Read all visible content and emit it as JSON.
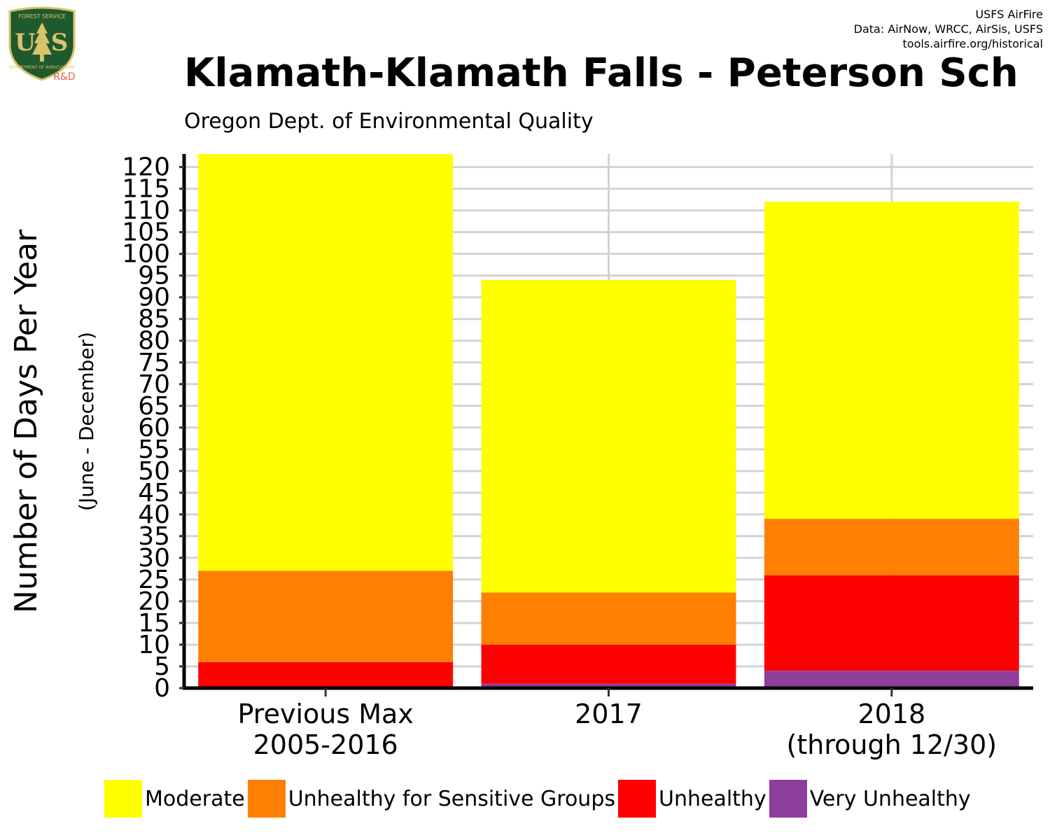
{
  "logo": {
    "top_text": "FOREST SERVICE",
    "initials": "USFS",
    "initial_left": "U",
    "initial_right": "S",
    "bottom_text": "DEPARTMENT OF AGRICULTURE",
    "tag": "R&D",
    "colors": {
      "shield": "#1e5a2e",
      "rim": "#d9c36a",
      "tree": "#d9c36a",
      "tag": "#e0614b"
    }
  },
  "credits": {
    "line1": "USFS AirFire",
    "line2": "Data: AirNow, WRCC, AirSis, USFS",
    "line3": "tools.airfire.org/historical"
  },
  "chart_data": {
    "type": "bar",
    "stacked": true,
    "title": "Klamath-Klamath Falls - Peterson Sch",
    "subtitle": "Oregon Dept. of Environmental Quality",
    "ylabel": "Number of Days Per Year",
    "ylabel_sub": "(June - December)",
    "xlabel": "",
    "ylim": [
      0,
      123
    ],
    "yticks": [
      0,
      5,
      10,
      15,
      20,
      25,
      30,
      35,
      40,
      45,
      50,
      55,
      60,
      65,
      70,
      75,
      80,
      85,
      90,
      95,
      100,
      105,
      110,
      115,
      120
    ],
    "grid": true,
    "legend_position": "bottom",
    "categories": [
      [
        "Previous Max",
        "2005-2016"
      ],
      [
        "2017"
      ],
      [
        "2018",
        "(through 12/30)"
      ]
    ],
    "series": [
      {
        "name": "Very Unhealthy",
        "color": "#8e3f9b",
        "values": [
          0,
          1,
          4
        ]
      },
      {
        "name": "Unhealthy",
        "color": "#ff0000",
        "values": [
          6,
          9,
          22
        ]
      },
      {
        "name": "Unhealthy for Sensitive Groups",
        "color": "#ff7f00",
        "values": [
          21,
          12,
          13
        ]
      },
      {
        "name": "Moderate",
        "color": "#ffff00",
        "values": [
          96,
          72,
          73
        ]
      }
    ],
    "legend_order": [
      "Moderate",
      "Unhealthy for Sensitive Groups",
      "Unhealthy",
      "Very Unhealthy"
    ]
  }
}
